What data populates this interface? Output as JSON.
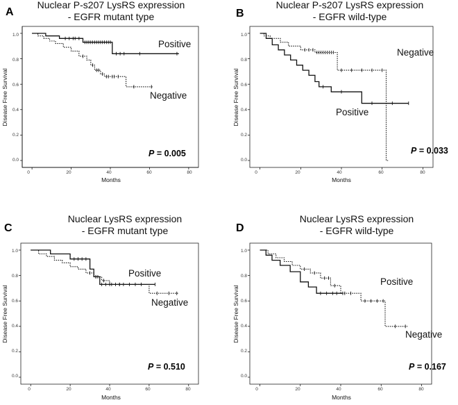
{
  "figure": {
    "x_axis_label": "Months",
    "y_axis_label": "Disease Free Survival",
    "p_symbol": "P"
  },
  "chart_data": [
    {
      "type": "line",
      "subtype": "kaplan-meier",
      "letter": "A",
      "title_lines": [
        "Nuclear P-s207 LysRS expression",
        "- EGFR mutant type"
      ],
      "xlabel": "Months",
      "ylabel": "Disease Free Survival",
      "xlim": [
        -5,
        85
      ],
      "ylim": [
        0,
        1
      ],
      "xticks": [
        0,
        20,
        40,
        60,
        80
      ],
      "yticks": [
        "0.0",
        "0.2",
        "0.4",
        "0.6",
        "0.8",
        "1.0"
      ],
      "p_value": "= 0.005",
      "series": [
        {
          "name": "Positive",
          "style": "solid",
          "x": [
            0,
            7,
            7,
            14,
            14,
            26,
            26,
            41,
            41,
            75
          ],
          "y": [
            1.0,
            1.0,
            0.98,
            0.98,
            0.96,
            0.96,
            0.93,
            0.93,
            0.84,
            0.84
          ],
          "censor_x": [
            17,
            19,
            21,
            22,
            24,
            27,
            28,
            29,
            30,
            31,
            32,
            33,
            34,
            35,
            36,
            37,
            38,
            39,
            40,
            43,
            45,
            47,
            55,
            74
          ],
          "censor_y": [
            0.96,
            0.96,
            0.96,
            0.96,
            0.96,
            0.93,
            0.93,
            0.93,
            0.93,
            0.93,
            0.93,
            0.93,
            0.93,
            0.93,
            0.93,
            0.93,
            0.93,
            0.93,
            0.93,
            0.84,
            0.84,
            0.84,
            0.84,
            0.84
          ]
        },
        {
          "name": "Negative",
          "style": "dotted",
          "x": [
            0,
            3,
            3,
            6,
            6,
            9,
            9,
            12,
            12,
            16,
            16,
            20,
            20,
            24,
            24,
            28,
            28,
            30,
            30,
            32,
            32,
            35,
            35,
            37,
            37,
            48,
            48,
            62
          ],
          "y": [
            1.0,
            1.0,
            0.98,
            0.98,
            0.96,
            0.96,
            0.94,
            0.94,
            0.92,
            0.92,
            0.89,
            0.89,
            0.86,
            0.86,
            0.82,
            0.82,
            0.79,
            0.79,
            0.75,
            0.75,
            0.71,
            0.71,
            0.68,
            0.68,
            0.66,
            0.66,
            0.58,
            0.58
          ],
          "censor_x": [
            26,
            31,
            33,
            34,
            36,
            38,
            39,
            41,
            42,
            44,
            52,
            61
          ],
          "censor_y": [
            0.82,
            0.75,
            0.71,
            0.71,
            0.68,
            0.66,
            0.66,
            0.66,
            0.66,
            0.66,
            0.58,
            0.58
          ]
        }
      ]
    },
    {
      "type": "line",
      "subtype": "kaplan-meier",
      "letter": "B",
      "title_lines": [
        "Nuclear P-s207 LysRS expression",
        "- EGFR wild-type"
      ],
      "xlabel": "Months",
      "ylabel": "Disease Free Survival",
      "xlim": [
        -5,
        85
      ],
      "ylim": [
        0,
        1
      ],
      "xticks": [
        0,
        20,
        40,
        60,
        80
      ],
      "yticks": [
        "0.0",
        "0.2",
        "0.4",
        "0.6",
        "0.8",
        "1.0"
      ],
      "p_value": "= 0.033",
      "series": [
        {
          "name": "Negative",
          "style": "dotted",
          "x": [
            0,
            2,
            2,
            5,
            5,
            10,
            10,
            14,
            14,
            20,
            20,
            27,
            27,
            38,
            38,
            62,
            62,
            63
          ],
          "y": [
            1.0,
            1.0,
            0.98,
            0.98,
            0.96,
            0.96,
            0.93,
            0.93,
            0.9,
            0.9,
            0.87,
            0.87,
            0.85,
            0.85,
            0.71,
            0.71,
            0.0,
            0.0
          ],
          "censor_x": [
            22,
            24,
            26,
            28,
            29,
            30,
            31,
            32,
            33,
            34,
            35,
            36,
            40,
            45,
            50,
            55,
            60
          ],
          "censor_y": [
            0.87,
            0.87,
            0.87,
            0.85,
            0.85,
            0.85,
            0.85,
            0.85,
            0.85,
            0.85,
            0.85,
            0.85,
            0.71,
            0.71,
            0.71,
            0.71,
            0.71
          ]
        },
        {
          "name": "Positive",
          "style": "solid",
          "x": [
            0,
            3,
            3,
            6,
            6,
            9,
            9,
            12,
            12,
            15,
            15,
            18,
            18,
            21,
            21,
            24,
            24,
            27,
            27,
            29,
            29,
            35,
            35,
            50,
            50,
            73
          ],
          "y": [
            1.0,
            1.0,
            0.96,
            0.96,
            0.91,
            0.91,
            0.87,
            0.87,
            0.83,
            0.83,
            0.79,
            0.79,
            0.75,
            0.75,
            0.71,
            0.71,
            0.67,
            0.67,
            0.62,
            0.62,
            0.58,
            0.58,
            0.54,
            0.54,
            0.45,
            0.45
          ],
          "censor_x": [
            31,
            40,
            55,
            65,
            73
          ],
          "censor_y": [
            0.58,
            0.54,
            0.45,
            0.45,
            0.45
          ]
        }
      ]
    },
    {
      "type": "line",
      "subtype": "kaplan-meier",
      "letter": "C",
      "title_lines": [
        "Nuclear LysRS expression",
        "- EGFR mutant type"
      ],
      "xlabel": "Months",
      "ylabel": "Disease Free Survival",
      "xlim": [
        -5,
        85
      ],
      "ylim": [
        0,
        1
      ],
      "xticks": [
        0,
        20,
        40,
        60,
        80
      ],
      "yticks": [
        "0.0",
        "0.2",
        "0.4",
        "0.6",
        "0.8",
        "1.0"
      ],
      "p_value": "= 0.510",
      "series": [
        {
          "name": "Positive",
          "style": "solid",
          "x": [
            0,
            10,
            10,
            20,
            20,
            30,
            30,
            32,
            32,
            35,
            35,
            63
          ],
          "y": [
            1.0,
            1.0,
            0.97,
            0.97,
            0.93,
            0.93,
            0.85,
            0.85,
            0.79,
            0.79,
            0.73,
            0.73
          ],
          "censor_x": [
            22,
            24,
            26,
            28,
            33,
            34,
            36,
            38,
            40,
            45,
            63
          ],
          "censor_y": [
            0.93,
            0.93,
            0.93,
            0.93,
            0.79,
            0.79,
            0.73,
            0.73,
            0.73,
            0.73,
            0.73
          ]
        },
        {
          "name": "Negative",
          "style": "dotted",
          "x": [
            0,
            4,
            4,
            8,
            8,
            12,
            12,
            16,
            16,
            20,
            20,
            24,
            24,
            28,
            28,
            32,
            32,
            36,
            36,
            40,
            40,
            60,
            60,
            75
          ],
          "y": [
            1.0,
            1.0,
            0.97,
            0.97,
            0.95,
            0.95,
            0.92,
            0.92,
            0.9,
            0.9,
            0.87,
            0.87,
            0.85,
            0.85,
            0.82,
            0.82,
            0.79,
            0.79,
            0.76,
            0.76,
            0.73,
            0.73,
            0.66,
            0.66
          ],
          "censor_x": [
            30,
            33,
            37,
            41,
            43,
            45,
            47,
            50,
            53,
            56,
            64,
            70,
            74
          ],
          "censor_y": [
            0.82,
            0.79,
            0.76,
            0.73,
            0.73,
            0.73,
            0.73,
            0.73,
            0.73,
            0.73,
            0.66,
            0.66,
            0.66
          ]
        }
      ]
    },
    {
      "type": "line",
      "subtype": "kaplan-meier",
      "letter": "D",
      "title_lines": [
        "Nuclear LysRS expression",
        "- EGFR wild-type"
      ],
      "xlabel": "Months",
      "ylabel": "Disease Free Survival",
      "xlim": [
        -5,
        85
      ],
      "ylim": [
        0,
        1
      ],
      "xticks": [
        0,
        20,
        40,
        60,
        80
      ],
      "yticks": [
        "0.0",
        "0.2",
        "0.4",
        "0.6",
        "0.8",
        "1.0"
      ],
      "p_value": "= 0.167",
      "series": [
        {
          "name": "Positive",
          "style": "solid",
          "x": [
            0,
            3,
            3,
            6,
            6,
            10,
            10,
            15,
            15,
            20,
            20,
            24,
            24,
            28,
            28,
            41
          ],
          "y": [
            1.0,
            1.0,
            0.96,
            0.96,
            0.92,
            0.92,
            0.88,
            0.88,
            0.83,
            0.83,
            0.75,
            0.75,
            0.71,
            0.71,
            0.66,
            0.66
          ],
          "censor_x": [
            30,
            33,
            36,
            38,
            41
          ],
          "censor_y": [
            0.66,
            0.66,
            0.66,
            0.66,
            0.66
          ]
        },
        {
          "name": "Negative",
          "style": "dotted",
          "x": [
            0,
            4,
            4,
            8,
            8,
            12,
            12,
            16,
            16,
            20,
            20,
            25,
            25,
            30,
            30,
            35,
            35,
            40,
            40,
            50,
            50,
            62,
            62,
            73
          ],
          "y": [
            1.0,
            1.0,
            0.97,
            0.97,
            0.94,
            0.94,
            0.91,
            0.91,
            0.88,
            0.88,
            0.85,
            0.85,
            0.82,
            0.82,
            0.78,
            0.78,
            0.72,
            0.72,
            0.66,
            0.66,
            0.6,
            0.6,
            0.4,
            0.4
          ],
          "censor_x": [
            22,
            27,
            32,
            34,
            37,
            42,
            45,
            52,
            55,
            58,
            61,
            67,
            72
          ],
          "censor_y": [
            0.85,
            0.82,
            0.78,
            0.78,
            0.72,
            0.66,
            0.66,
            0.6,
            0.6,
            0.6,
            0.6,
            0.4,
            0.4
          ]
        }
      ]
    }
  ]
}
